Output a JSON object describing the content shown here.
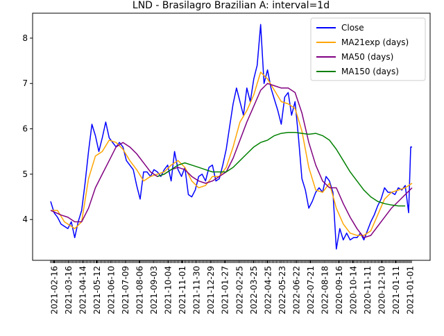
{
  "chart_data": {
    "type": "line",
    "title": "LND - Brasilagro Brazilian A: interval=1d",
    "xlabel": "",
    "ylabel": "",
    "ylim": [
      3.1,
      8.55
    ],
    "yticks": [
      4,
      5,
      6,
      7,
      8
    ],
    "xticklabels": [
      "2021-02-16",
      "2021-03-16",
      "2021-04-14",
      "2021-05-12",
      "2021-06-10",
      "2021-07-09",
      "2021-08-06",
      "2021-09-03",
      "2021-10-04",
      "2021-11-01",
      "2021-11-30",
      "2021-12-29",
      "2021-01-27",
      "2022-02-25",
      "2022-03-25",
      "2022-04-25",
      "2022-05-23",
      "2022-06-22",
      "2022-07-21",
      "2022-08-18",
      "2020-09-16",
      "2020-10-14",
      "2020-11-11",
      "2020-12-10",
      "2021-01-11",
      "2021-01-01"
    ],
    "legend": {
      "position": "top-right"
    },
    "grid": false,
    "x_index_range": [
      0,
      525
    ],
    "series": [
      {
        "name": "Close",
        "color": "#0000ff",
        "points": [
          [
            0,
            4.4
          ],
          [
            5,
            4.15
          ],
          [
            10,
            4.05
          ],
          [
            15,
            3.9
          ],
          [
            20,
            3.85
          ],
          [
            25,
            3.8
          ],
          [
            30,
            3.95
          ],
          [
            35,
            3.6
          ],
          [
            40,
            3.95
          ],
          [
            45,
            4.2
          ],
          [
            50,
            4.8
          ],
          [
            55,
            5.5
          ],
          [
            60,
            6.1
          ],
          [
            65,
            5.85
          ],
          [
            70,
            5.5
          ],
          [
            75,
            5.8
          ],
          [
            80,
            6.15
          ],
          [
            85,
            5.8
          ],
          [
            90,
            5.7
          ],
          [
            95,
            5.6
          ],
          [
            100,
            5.7
          ],
          [
            105,
            5.6
          ],
          [
            110,
            5.3
          ],
          [
            115,
            5.2
          ],
          [
            120,
            5.1
          ],
          [
            125,
            4.75
          ],
          [
            130,
            4.45
          ],
          [
            135,
            5.05
          ],
          [
            140,
            5.05
          ],
          [
            145,
            4.95
          ],
          [
            150,
            5.1
          ],
          [
            155,
            5.05
          ],
          [
            160,
            4.95
          ],
          [
            165,
            5.1
          ],
          [
            170,
            5.2
          ],
          [
            175,
            4.85
          ],
          [
            180,
            5.5
          ],
          [
            185,
            5.1
          ],
          [
            190,
            4.95
          ],
          [
            195,
            5.15
          ],
          [
            200,
            4.55
          ],
          [
            205,
            4.5
          ],
          [
            210,
            4.65
          ],
          [
            215,
            4.95
          ],
          [
            220,
            5.0
          ],
          [
            225,
            4.85
          ],
          [
            230,
            5.15
          ],
          [
            235,
            5.2
          ],
          [
            240,
            4.85
          ],
          [
            245,
            4.9
          ],
          [
            250,
            5.2
          ],
          [
            255,
            5.55
          ],
          [
            260,
            6.05
          ],
          [
            265,
            6.55
          ],
          [
            270,
            6.9
          ],
          [
            275,
            6.6
          ],
          [
            280,
            6.3
          ],
          [
            285,
            6.9
          ],
          [
            290,
            6.6
          ],
          [
            295,
            7.1
          ],
          [
            300,
            7.4
          ],
          [
            305,
            8.3
          ],
          [
            310,
            7.0
          ],
          [
            315,
            7.3
          ],
          [
            320,
            6.9
          ],
          [
            325,
            6.65
          ],
          [
            330,
            6.4
          ],
          [
            335,
            6.1
          ],
          [
            340,
            6.7
          ],
          [
            345,
            6.8
          ],
          [
            350,
            6.3
          ],
          [
            355,
            6.6
          ],
          [
            360,
            5.8
          ],
          [
            365,
            4.9
          ],
          [
            370,
            4.65
          ],
          [
            375,
            4.25
          ],
          [
            380,
            4.4
          ],
          [
            385,
            4.6
          ],
          [
            390,
            4.7
          ],
          [
            395,
            4.6
          ],
          [
            400,
            4.95
          ],
          [
            405,
            4.85
          ],
          [
            410,
            4.6
          ],
          [
            415,
            3.35
          ],
          [
            420,
            3.8
          ],
          [
            425,
            3.55
          ],
          [
            430,
            3.7
          ],
          [
            435,
            3.55
          ],
          [
            440,
            3.6
          ],
          [
            445,
            3.6
          ],
          [
            450,
            3.7
          ],
          [
            455,
            3.55
          ],
          [
            460,
            3.75
          ],
          [
            465,
            3.95
          ],
          [
            470,
            4.1
          ],
          [
            475,
            4.3
          ],
          [
            480,
            4.45
          ],
          [
            485,
            4.7
          ],
          [
            490,
            4.6
          ],
          [
            495,
            4.6
          ],
          [
            500,
            4.55
          ],
          [
            505,
            4.7
          ],
          [
            510,
            4.65
          ],
          [
            515,
            4.75
          ],
          [
            520,
            4.15
          ],
          [
            523,
            5.6
          ],
          [
            525,
            5.6
          ]
        ]
      },
      {
        "name": "MA21exp (days)",
        "color": "#ffa500",
        "points": [
          [
            0,
            4.2
          ],
          [
            10,
            4.2
          ],
          [
            20,
            3.95
          ],
          [
            30,
            3.85
          ],
          [
            35,
            3.8
          ],
          [
            45,
            3.95
          ],
          [
            55,
            4.9
          ],
          [
            65,
            5.4
          ],
          [
            75,
            5.5
          ],
          [
            85,
            5.75
          ],
          [
            95,
            5.7
          ],
          [
            105,
            5.55
          ],
          [
            115,
            5.3
          ],
          [
            125,
            5.1
          ],
          [
            135,
            4.85
          ],
          [
            145,
            4.95
          ],
          [
            155,
            5.0
          ],
          [
            165,
            5.05
          ],
          [
            175,
            5.2
          ],
          [
            185,
            5.3
          ],
          [
            195,
            5.15
          ],
          [
            205,
            4.85
          ],
          [
            215,
            4.7
          ],
          [
            225,
            4.75
          ],
          [
            235,
            4.95
          ],
          [
            245,
            4.95
          ],
          [
            255,
            5.15
          ],
          [
            265,
            5.6
          ],
          [
            275,
            6.15
          ],
          [
            285,
            6.4
          ],
          [
            295,
            6.75
          ],
          [
            305,
            7.25
          ],
          [
            315,
            7.1
          ],
          [
            325,
            6.85
          ],
          [
            335,
            6.6
          ],
          [
            345,
            6.55
          ],
          [
            355,
            6.45
          ],
          [
            365,
            5.95
          ],
          [
            375,
            5.15
          ],
          [
            385,
            4.65
          ],
          [
            395,
            4.6
          ],
          [
            405,
            4.8
          ],
          [
            415,
            4.25
          ],
          [
            425,
            3.9
          ],
          [
            435,
            3.7
          ],
          [
            445,
            3.65
          ],
          [
            455,
            3.65
          ],
          [
            465,
            3.75
          ],
          [
            475,
            4.1
          ],
          [
            485,
            4.45
          ],
          [
            495,
            4.6
          ],
          [
            505,
            4.65
          ],
          [
            515,
            4.7
          ],
          [
            525,
            4.8
          ]
        ]
      },
      {
        "name": "MA50 (days)",
        "color": "#800080",
        "points": [
          [
            0,
            4.2
          ],
          [
            15,
            4.1
          ],
          [
            25,
            4.05
          ],
          [
            35,
            3.95
          ],
          [
            45,
            3.95
          ],
          [
            55,
            4.25
          ],
          [
            65,
            4.7
          ],
          [
            75,
            5.0
          ],
          [
            85,
            5.3
          ],
          [
            95,
            5.6
          ],
          [
            105,
            5.7
          ],
          [
            115,
            5.6
          ],
          [
            125,
            5.45
          ],
          [
            135,
            5.25
          ],
          [
            145,
            5.05
          ],
          [
            155,
            4.95
          ],
          [
            165,
            5.0
          ],
          [
            175,
            5.1
          ],
          [
            185,
            5.15
          ],
          [
            195,
            5.1
          ],
          [
            205,
            4.95
          ],
          [
            215,
            4.85
          ],
          [
            225,
            4.8
          ],
          [
            235,
            4.85
          ],
          [
            245,
            4.95
          ],
          [
            255,
            5.05
          ],
          [
            265,
            5.35
          ],
          [
            275,
            5.75
          ],
          [
            285,
            6.15
          ],
          [
            295,
            6.5
          ],
          [
            305,
            6.85
          ],
          [
            315,
            7.0
          ],
          [
            325,
            6.95
          ],
          [
            335,
            6.9
          ],
          [
            345,
            6.9
          ],
          [
            355,
            6.8
          ],
          [
            365,
            6.35
          ],
          [
            375,
            5.7
          ],
          [
            385,
            5.2
          ],
          [
            395,
            4.85
          ],
          [
            405,
            4.7
          ],
          [
            415,
            4.7
          ],
          [
            425,
            4.35
          ],
          [
            435,
            4.05
          ],
          [
            445,
            3.8
          ],
          [
            455,
            3.6
          ],
          [
            465,
            3.65
          ],
          [
            475,
            3.85
          ],
          [
            485,
            4.05
          ],
          [
            495,
            4.25
          ],
          [
            505,
            4.4
          ],
          [
            515,
            4.55
          ],
          [
            525,
            4.7
          ]
        ]
      },
      {
        "name": "MA150 (days)",
        "color": "#008000",
        "points": [
          [
            155,
            4.95
          ],
          [
            165,
            5.0
          ],
          [
            175,
            5.1
          ],
          [
            185,
            5.2
          ],
          [
            195,
            5.25
          ],
          [
            205,
            5.2
          ],
          [
            215,
            5.15
          ],
          [
            225,
            5.1
          ],
          [
            235,
            5.05
          ],
          [
            245,
            5.05
          ],
          [
            255,
            5.05
          ],
          [
            265,
            5.15
          ],
          [
            275,
            5.3
          ],
          [
            285,
            5.45
          ],
          [
            295,
            5.6
          ],
          [
            305,
            5.7
          ],
          [
            315,
            5.75
          ],
          [
            325,
            5.85
          ],
          [
            335,
            5.9
          ],
          [
            345,
            5.92
          ],
          [
            355,
            5.92
          ],
          [
            365,
            5.9
          ],
          [
            375,
            5.88
          ],
          [
            385,
            5.9
          ],
          [
            395,
            5.85
          ],
          [
            405,
            5.75
          ],
          [
            415,
            5.55
          ],
          [
            425,
            5.3
          ],
          [
            435,
            5.05
          ],
          [
            445,
            4.85
          ],
          [
            455,
            4.65
          ],
          [
            465,
            4.5
          ],
          [
            475,
            4.4
          ],
          [
            485,
            4.35
          ],
          [
            495,
            4.32
          ],
          [
            505,
            4.3
          ],
          [
            515,
            4.3
          ]
        ]
      }
    ]
  }
}
